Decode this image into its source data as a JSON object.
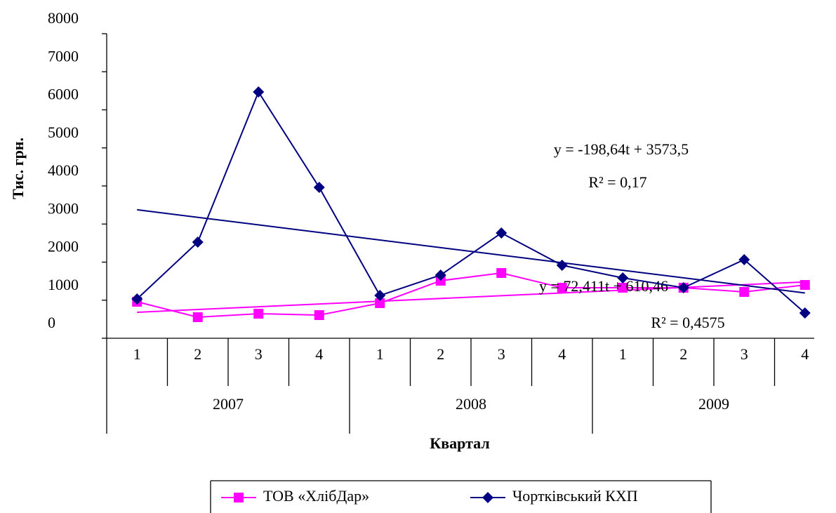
{
  "chart_data": {
    "type": "line",
    "categories": [
      "1",
      "2",
      "3",
      "4",
      "1",
      "2",
      "3",
      "4",
      "1",
      "2",
      "3",
      "4"
    ],
    "year_groups": [
      "2007",
      "2008",
      "2009"
    ],
    "ylabel": "Тис.  грн.",
    "xlabel": "Квартал",
    "ylim": [
      0,
      8000
    ],
    "yticks": [
      0,
      1000,
      2000,
      3000,
      4000,
      5000,
      6000,
      7000,
      8000
    ],
    "grid": false,
    "legend": "bottom",
    "series": [
      {
        "name": "ТОВ «ХлібДар»",
        "color": "#ff00ff",
        "marker": "square",
        "values": [
          958,
          553,
          645,
          608,
          922,
          1512,
          1714,
          1327,
          1327,
          1327,
          1217,
          1400
        ],
        "trend": {
          "equation": "y = 72,411t + 610,46",
          "r2": "R² = 0,4575",
          "slope": 72.411,
          "intercept": 610.46
        }
      },
      {
        "name": "Чортківський КХП",
        "color": "#000080",
        "marker": "diamond",
        "values": [
          1032,
          2525,
          6470,
          3963,
          1124,
          1660,
          2765,
          1917,
          1585,
          1327,
          2065,
          664
        ],
        "trend": {
          "equation": "y = -198,64t + 3573,5",
          "r2": "R² = 0,17",
          "slope": -198.64,
          "intercept": 3573.5
        }
      }
    ]
  }
}
